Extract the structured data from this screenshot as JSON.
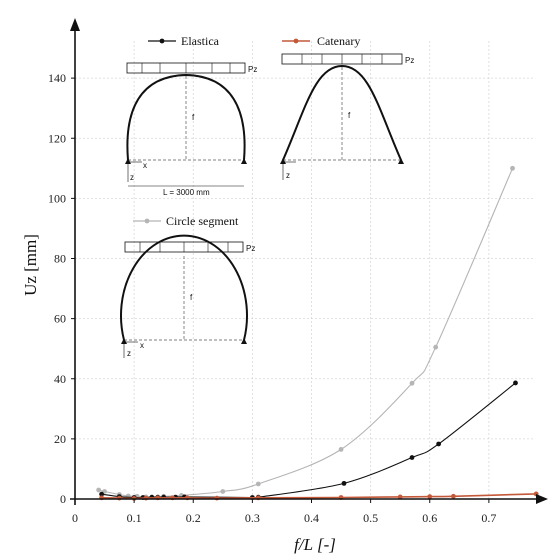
{
  "chart_data": {
    "type": "line",
    "title": "",
    "xlabel": "f/L [-]",
    "ylabel": "Uz [mm]",
    "xlim": [
      0,
      0.8
    ],
    "ylim": [
      0,
      160
    ],
    "x_ticks": [
      "0",
      "0.1",
      "0.2",
      "0.3",
      "0.4",
      "0.5",
      "0.6",
      "0.7"
    ],
    "y_ticks": [
      "0",
      "20",
      "40",
      "60",
      "80",
      "100",
      "120",
      "140"
    ],
    "grid": true,
    "legend": "top, embedded with structural insets",
    "series": [
      {
        "name": "Elastica",
        "color": "#111111",
        "points": [
          [
            0.045,
            1.6
          ],
          [
            0.075,
            0.8
          ],
          [
            0.1,
            0.5
          ],
          [
            0.115,
            0.5
          ],
          [
            0.13,
            0.6
          ],
          [
            0.14,
            0.6
          ],
          [
            0.15,
            0.6
          ],
          [
            0.17,
            0.6
          ],
          [
            0.185,
            0.7
          ],
          [
            0.3,
            0.5
          ],
          [
            0.31,
            0.6
          ],
          [
            0.455,
            5.2
          ],
          [
            0.57,
            13.8
          ],
          [
            0.615,
            18.3
          ],
          [
            0.745,
            38.6
          ]
        ]
      },
      {
        "name": "Catenary",
        "color": "#c4593a",
        "points": [
          [
            0.045,
            0.4
          ],
          [
            0.075,
            0.3
          ],
          [
            0.1,
            0.2
          ],
          [
            0.12,
            0.3
          ],
          [
            0.14,
            0.4
          ],
          [
            0.165,
            0.4
          ],
          [
            0.19,
            0.4
          ],
          [
            0.24,
            0.3
          ],
          [
            0.31,
            0.4
          ],
          [
            0.45,
            0.5
          ],
          [
            0.55,
            0.7
          ],
          [
            0.6,
            0.8
          ],
          [
            0.64,
            0.9
          ],
          [
            0.78,
            1.7
          ]
        ]
      },
      {
        "name": "Circle segment",
        "color": "#b5b5b5",
        "points": [
          [
            0.04,
            3.0
          ],
          [
            0.05,
            2.5
          ],
          [
            0.075,
            1.5
          ],
          [
            0.09,
            1.0
          ],
          [
            0.105,
            0.9
          ],
          [
            0.12,
            0.7
          ],
          [
            0.15,
            0.9
          ],
          [
            0.18,
            1.2
          ],
          [
            0.25,
            2.5
          ],
          [
            0.31,
            5.0
          ],
          [
            0.45,
            16.5
          ],
          [
            0.57,
            38.5
          ],
          [
            0.61,
            50.5
          ],
          [
            0.74,
            110
          ]
        ]
      }
    ],
    "insets": {
      "load_label": "Pz",
      "rise_label": "f",
      "x_label": "x",
      "z_label": "z",
      "span_label": "L = 3000 mm"
    }
  }
}
